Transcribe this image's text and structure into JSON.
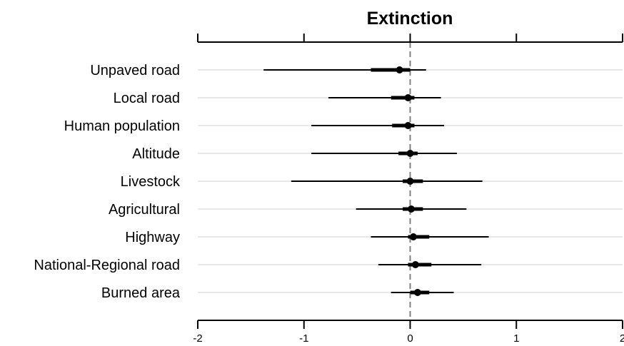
{
  "chart_data": {
    "type": "forest",
    "title": "Extinction",
    "xlabel": "",
    "ylabel": "",
    "xlim": [
      -2,
      2
    ],
    "x_ticks": [
      "-2",
      "-1",
      "0",
      "1",
      "2"
    ],
    "reference_line": 0,
    "grid": "horizontal",
    "categories": [
      "Unpaved road",
      "Local road",
      "Human population",
      "Altitude",
      "Livestock",
      "Agricultural",
      "Highway",
      "National-Regional road",
      "Burned area"
    ],
    "series": [
      {
        "estimate": [
          -0.1,
          -0.02,
          -0.02,
          0.0,
          0.0,
          0.01,
          0.03,
          0.05,
          0.07
        ],
        "inner_low": [
          -0.37,
          -0.18,
          -0.17,
          -0.11,
          -0.07,
          -0.07,
          -0.02,
          -0.02,
          0.0
        ],
        "inner_high": [
          0.0,
          0.04,
          0.04,
          0.07,
          0.12,
          0.12,
          0.18,
          0.2,
          0.18
        ],
        "outer_low": [
          -1.38,
          -0.77,
          -0.93,
          -0.93,
          -1.12,
          -0.51,
          -0.37,
          -0.3,
          -0.18
        ],
        "outer_high": [
          0.15,
          0.29,
          0.32,
          0.44,
          0.68,
          0.53,
          0.74,
          0.67,
          0.41
        ]
      }
    ],
    "colors": {
      "marker": "#000000",
      "grid": "#d9d9d9",
      "reference": "#808080",
      "axis": "#000000"
    }
  }
}
